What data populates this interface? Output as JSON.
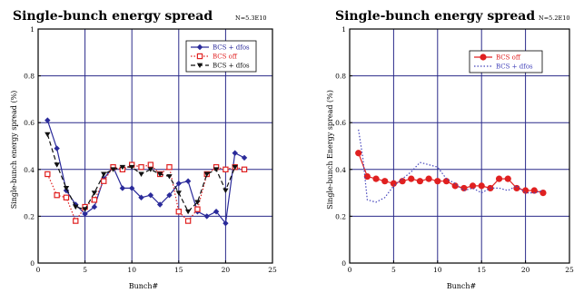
{
  "chart_data": [
    {
      "type": "line",
      "title": "Single-bunch energy spread",
      "note": "N=5.3E10",
      "xlabel": "Bunch#",
      "ylabel": "Single-bunch energy spread (%)",
      "xlim": [
        0,
        25
      ],
      "ylim": [
        0,
        1
      ],
      "xticks": [
        0,
        5,
        10,
        15,
        20,
        25
      ],
      "yticks": [
        0,
        0.2,
        0.4,
        0.6,
        0.8,
        1
      ],
      "grid": true,
      "legend_position": "top-right",
      "series": [
        {
          "name": "BCS + dfos",
          "color": "#2a2a9a",
          "style": "solid",
          "marker": "diamond",
          "x": [
            1,
            2,
            3,
            4,
            5,
            6,
            7,
            8,
            9,
            10,
            11,
            12,
            13,
            14,
            15,
            16,
            17,
            18,
            19,
            20,
            21,
            22
          ],
          "y": [
            0.61,
            0.49,
            0.31,
            0.25,
            0.21,
            0.24,
            0.36,
            0.41,
            0.32,
            0.32,
            0.28,
            0.29,
            0.25,
            0.29,
            0.34,
            0.35,
            0.22,
            0.2,
            0.22,
            0.17,
            0.47,
            0.45
          ]
        },
        {
          "name": "BCS off",
          "color": "#e02020",
          "style": "dotted",
          "marker": "square",
          "x": [
            1,
            2,
            3,
            4,
            5,
            6,
            7,
            8,
            9,
            10,
            11,
            12,
            13,
            14,
            15,
            16,
            17,
            18,
            19,
            20,
            21,
            22
          ],
          "y": [
            0.38,
            0.29,
            0.28,
            0.18,
            0.24,
            0.27,
            0.35,
            0.41,
            0.4,
            0.42,
            0.41,
            0.42,
            0.38,
            0.41,
            0.22,
            0.18,
            0.23,
            0.38,
            0.41,
            0.4,
            0.41,
            0.4
          ]
        },
        {
          "name": "BCS + dfos",
          "color": "#111111",
          "style": "dashed",
          "marker": "triangle",
          "x": [
            1,
            2,
            3,
            4,
            5,
            6,
            7,
            8,
            9,
            10,
            11,
            12,
            13,
            14,
            15,
            16,
            17,
            18,
            19,
            20,
            21
          ],
          "y": [
            0.55,
            0.42,
            0.32,
            0.24,
            0.23,
            0.3,
            0.38,
            0.4,
            0.41,
            0.41,
            0.38,
            0.4,
            0.38,
            0.37,
            0.3,
            0.22,
            0.26,
            0.38,
            0.4,
            0.31,
            0.41
          ]
        }
      ]
    },
    {
      "type": "line",
      "title": "Single-bunch energy spread",
      "note": "N=5.2E10",
      "xlabel": "Bunch#",
      "ylabel": "Single-bunch Energy spread (%)",
      "xlim": [
        0,
        25
      ],
      "ylim": [
        0,
        1
      ],
      "xticks": [
        0,
        5,
        10,
        15,
        20,
        25
      ],
      "yticks": [
        0,
        0.2,
        0.4,
        0.6,
        0.8,
        1
      ],
      "grid": true,
      "legend_position": "top-right",
      "series": [
        {
          "name": "BCS off",
          "color": "#e02020",
          "style": "solid",
          "marker": "circle",
          "x": [
            1,
            2,
            3,
            4,
            5,
            6,
            7,
            8,
            9,
            10,
            11,
            12,
            13,
            14,
            15,
            16,
            17,
            18,
            19,
            20,
            21,
            22
          ],
          "y": [
            0.47,
            0.37,
            0.36,
            0.35,
            0.34,
            0.35,
            0.36,
            0.35,
            0.36,
            0.35,
            0.35,
            0.33,
            0.32,
            0.33,
            0.33,
            0.32,
            0.36,
            0.36,
            0.32,
            0.31,
            0.31,
            0.3
          ]
        },
        {
          "name": "BCS + dfos",
          "color": "#4444bb",
          "style": "dotted",
          "marker": "none",
          "x": [
            1,
            1.5,
            2,
            3,
            4,
            5,
            6,
            7,
            8,
            9,
            10,
            11,
            12,
            13,
            14,
            15,
            16,
            17,
            18,
            19,
            20,
            21,
            22
          ],
          "y": [
            0.57,
            0.45,
            0.27,
            0.26,
            0.28,
            0.33,
            0.36,
            0.39,
            0.43,
            0.42,
            0.41,
            0.36,
            0.34,
            0.31,
            0.32,
            0.3,
            0.32,
            0.32,
            0.31,
            0.33,
            0.3,
            0.3,
            0.31
          ]
        }
      ]
    }
  ]
}
